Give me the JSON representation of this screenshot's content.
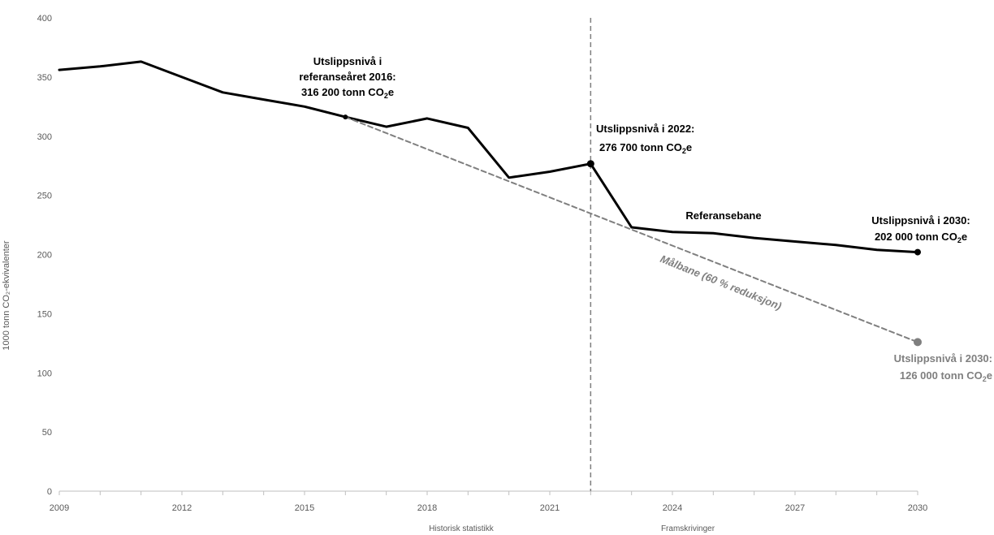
{
  "chart_data": {
    "type": "line",
    "xlim": [
      2009,
      2030
    ],
    "ylim": [
      0,
      400
    ],
    "ylabel": "1000 tonn CO₂-ekvivalenter",
    "x_ticks": [
      2009,
      2012,
      2015,
      2018,
      2021,
      2024,
      2027,
      2030
    ],
    "y_ticks": [
      0,
      50,
      100,
      150,
      200,
      250,
      300,
      350,
      400
    ],
    "grid": false,
    "section_labels": {
      "historical": "Historisk statistikk",
      "projection": "Framskrivinger"
    },
    "divider_x": 2022,
    "series": [
      {
        "name": "Referansebane",
        "color": "#000000",
        "style": "solid",
        "points": [
          {
            "x": 2009,
            "y": 356
          },
          {
            "x": 2010,
            "y": 359
          },
          {
            "x": 2011,
            "y": 363
          },
          {
            "x": 2012,
            "y": 350
          },
          {
            "x": 2013,
            "y": 337
          },
          {
            "x": 2014,
            "y": 331
          },
          {
            "x": 2015,
            "y": 325
          },
          {
            "x": 2016,
            "y": 316.2
          },
          {
            "x": 2017,
            "y": 308
          },
          {
            "x": 2018,
            "y": 315
          },
          {
            "x": 2019,
            "y": 307
          },
          {
            "x": 2020,
            "y": 265
          },
          {
            "x": 2021,
            "y": 270
          },
          {
            "x": 2022,
            "y": 276.7
          },
          {
            "x": 2023,
            "y": 223
          },
          {
            "x": 2024,
            "y": 219
          },
          {
            "x": 2025,
            "y": 218
          },
          {
            "x": 2026,
            "y": 214
          },
          {
            "x": 2027,
            "y": 211
          },
          {
            "x": 2028,
            "y": 208
          },
          {
            "x": 2029,
            "y": 204
          },
          {
            "x": 2030,
            "y": 202
          }
        ]
      },
      {
        "name": "Målbane (60 % reduksjon)",
        "color": "#7f7f7f",
        "style": "dashed",
        "points": [
          {
            "x": 2016,
            "y": 316.2
          },
          {
            "x": 2030,
            "y": 126
          }
        ]
      }
    ],
    "markers": [
      {
        "x": 2016,
        "y": 316.2,
        "color": "#000000",
        "r": 3
      },
      {
        "x": 2022,
        "y": 276.7,
        "color": "#000000",
        "r": 4.5
      },
      {
        "x": 2030,
        "y": 202,
        "color": "#000000",
        "r": 4
      },
      {
        "x": 2030,
        "y": 126,
        "color": "#7f7f7f",
        "r": 5
      }
    ],
    "annotations": {
      "ref2016": {
        "line1": "Utslippsnivå i",
        "line2": "referanseåret 2016:",
        "line3_main": "316 200 tonn CO",
        "sub": "2",
        "line3_suffix": "e"
      },
      "lvl2022": {
        "line1": "Utslippsnivå i 2022:",
        "line2_main": "276 700 tonn CO",
        "sub": "2",
        "line2_suffix": "e"
      },
      "lvl2030": {
        "line1": "Utslippsnivå i 2030:",
        "line2_main": "202 000 tonn CO",
        "sub": "2",
        "line2_suffix": "e"
      },
      "target2030": {
        "line1": "Utslippsnivå i 2030:",
        "line2_main": "126 000 tonn CO",
        "sub": "2",
        "line2_suffix": "e"
      },
      "refbane_label": "Referansebane",
      "malbane_label": "Målbane (60 % reduksjon)"
    }
  }
}
